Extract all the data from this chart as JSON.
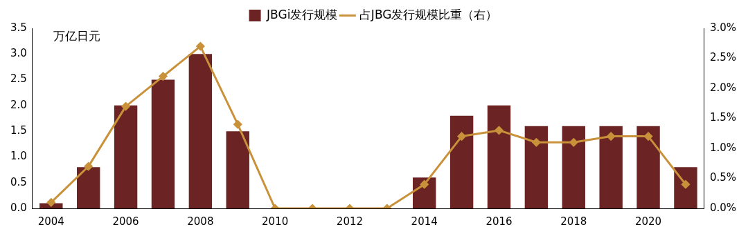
{
  "chart_data": {
    "type": "bar",
    "ylabel": "万亿日元",
    "categories": [
      "2004",
      null,
      "2006",
      null,
      "2008",
      null,
      "2010",
      null,
      "2012",
      null,
      "2014",
      null,
      "2016",
      null,
      "2018",
      null,
      "2020",
      null
    ],
    "series": [
      {
        "name": "JBGi发行规模",
        "color": "#6b2423",
        "values": [
          0.1,
          0.8,
          2.0,
          2.5,
          3.0,
          1.5,
          0,
          0,
          0,
          0,
          0.6,
          1.8,
          2.0,
          1.6,
          1.6,
          1.6,
          1.6,
          0.8
        ]
      },
      {
        "name": "占JBG发行规模比重（右）",
        "type": "line",
        "axis": "y2",
        "color": "#c8913a",
        "marker": "diamond",
        "values": [
          0.1,
          0.7,
          1.7,
          2.2,
          2.7,
          1.4,
          0,
          0,
          0,
          0,
          0.4,
          1.2,
          1.3,
          1.1,
          1.1,
          1.2,
          1.2,
          0.4
        ]
      }
    ],
    "ylim": [
      0,
      3.5
    ],
    "yticks": [
      {
        "value": 0,
        "label": "0.0"
      },
      {
        "value": 0.5,
        "label": "0.5"
      },
      {
        "value": 1,
        "label": "1.0"
      },
      {
        "value": 1.5,
        "label": "1.5"
      },
      {
        "value": 2,
        "label": "2.0"
      },
      {
        "value": 2.5,
        "label": "2.5"
      },
      {
        "value": 3,
        "label": "3.0"
      },
      {
        "value": 3.5,
        "label": "3.5"
      }
    ],
    "y2lim": [
      0,
      3
    ],
    "y2ticks": [
      {
        "value": 0,
        "label": "0.0%"
      },
      {
        "value": 0.5,
        "label": "0.5%"
      },
      {
        "value": 1,
        "label": "1.0%"
      },
      {
        "value": 1.5,
        "label": "1.5%"
      },
      {
        "value": 2,
        "label": "2.0%"
      },
      {
        "value": 2.5,
        "label": "2.5%"
      },
      {
        "value": 3,
        "label": "3.0%"
      }
    ],
    "legend": "top"
  }
}
